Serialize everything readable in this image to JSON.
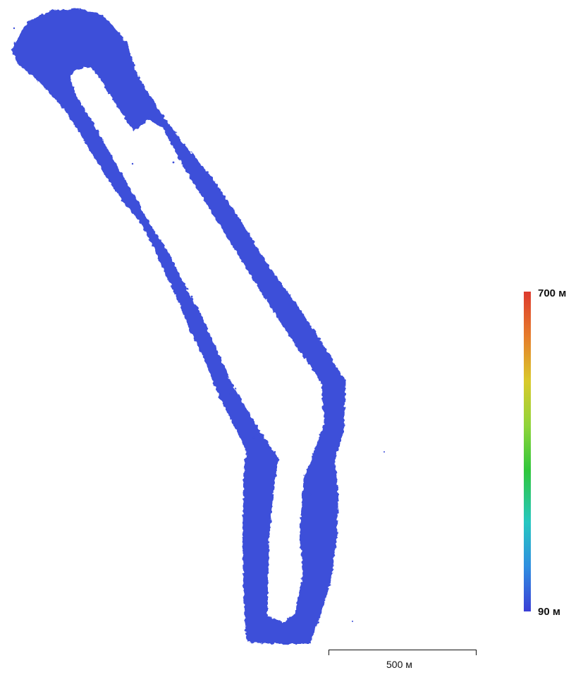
{
  "colors": {
    "elevation_fill": "#3d4fd9",
    "legend_gradient": [
      "#dd3a2e",
      "#e67c2b",
      "#d9c92a",
      "#8fd43a",
      "#2fc63b",
      "#26c7c0",
      "#2f8ee0",
      "#3a3fd6"
    ],
    "background": "#ffffff"
  },
  "legend": {
    "max_label": "700 м",
    "min_label": "90 м"
  },
  "scale": {
    "label": "500 м"
  }
}
